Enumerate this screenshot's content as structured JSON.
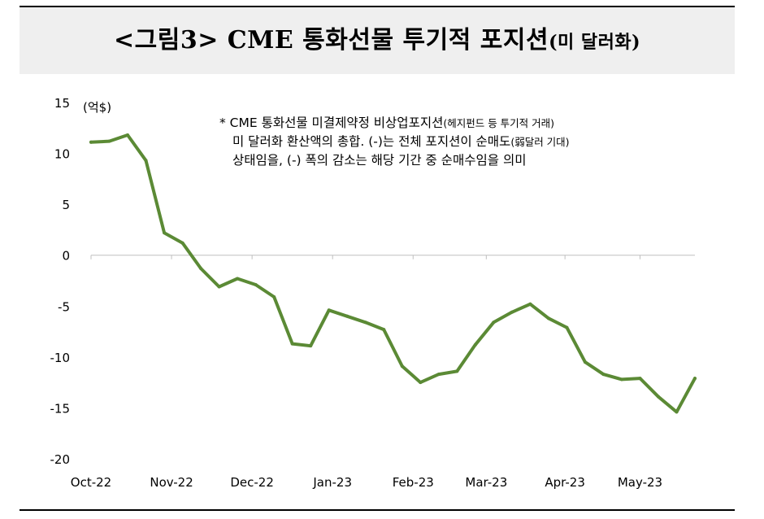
{
  "title": {
    "main": "<그림3> CME 통화선물 투기적 포지션",
    "sub": "(미 달러화)"
  },
  "note": {
    "line1_main": "* CME 통화선물 미결제약정 비상업포지션",
    "line1_small": "(헤지펀드 등 투기적 거래)",
    "line2_main": "미 달러화 환산액의 총합. (-)는 전체 포지션이 순매도",
    "line2_small": "(弱달러 기대)",
    "line3": "상태임을, (-) 폭의 감소는 해당 기간 중 순매수임을 의미"
  },
  "colors": {
    "line": "#5b8a35",
    "axis": "#bfbfbf",
    "title_band": "#efefef"
  },
  "chart_data": {
    "type": "line",
    "ylabel": "(억$)",
    "ylim": [
      -20,
      15
    ],
    "yticks": [
      15,
      10,
      5,
      0,
      -5,
      -10,
      -15,
      -20
    ],
    "x_tick_labels": [
      "Oct-22",
      "Nov-22",
      "Dec-22",
      "Jan-23",
      "Feb-23",
      "Mar-23",
      "Apr-23",
      "May-23"
    ],
    "values": [
      11.1,
      11.2,
      11.8,
      9.3,
      2.2,
      1.2,
      -1.3,
      -3.1,
      -2.3,
      -2.9,
      -4.1,
      -8.7,
      -8.9,
      -5.4,
      -6.0,
      -6.6,
      -7.3,
      -10.9,
      -12.5,
      -11.7,
      -11.4,
      -8.8,
      -6.6,
      -5.6,
      -4.8,
      -6.2,
      -7.1,
      -10.5,
      -11.7,
      -12.2,
      -12.1,
      -13.9,
      -15.4,
      -12.1
    ],
    "x_tick_indices": [
      0,
      4.4,
      8.8,
      13.2,
      17.6,
      21.6,
      25.9,
      30.0
    ]
  }
}
